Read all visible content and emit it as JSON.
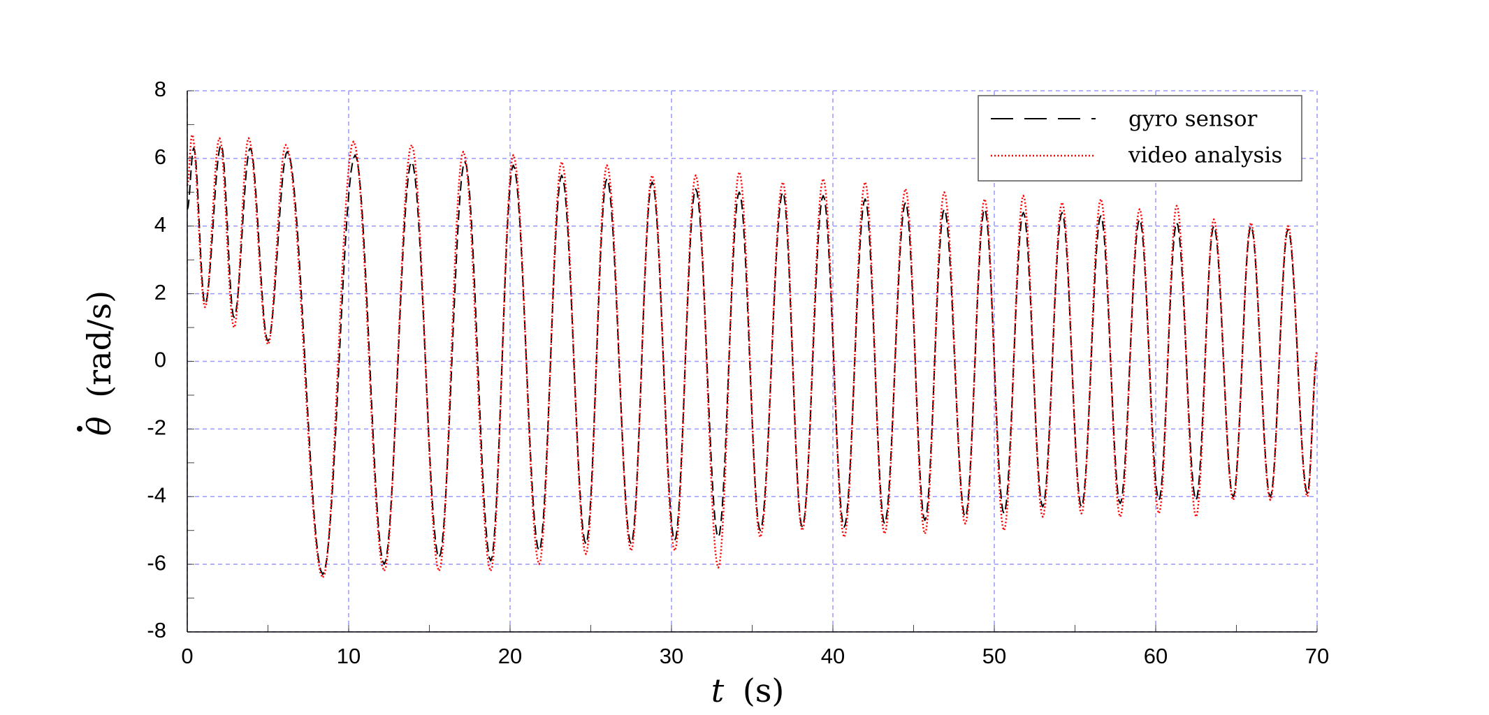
{
  "chart_data": {
    "type": "line",
    "title": "",
    "xlabel": {
      "var": "t",
      "unit": "(s)"
    },
    "ylabel": {
      "var": "θ",
      "unit": "(rad/s)"
    },
    "xlim": [
      0,
      70
    ],
    "ylim": [
      -8,
      8
    ],
    "xticks": [
      0,
      10,
      20,
      30,
      40,
      50,
      60,
      70
    ],
    "yticks": [
      -8,
      -6,
      -4,
      -2,
      0,
      2,
      4,
      6,
      8
    ],
    "xtick_labels": [
      "0",
      "10",
      "20",
      "30",
      "40",
      "50",
      "60",
      "70"
    ],
    "ytick_labels": [
      "-8",
      "-6",
      "-4",
      "-2",
      "0",
      "2",
      "4",
      "6",
      "8"
    ],
    "grid": true,
    "legend_position": "top-right",
    "colors": {
      "gyro": "#000000",
      "video": "#ff0000",
      "grid": "#9999ff",
      "legend_border": "#555555"
    },
    "series": [
      {
        "name": "gyro sensor",
        "style": "dashed",
        "peaks": [
          [
            0.4,
            6.3
          ],
          [
            2.1,
            6.4
          ],
          [
            3.9,
            6.3
          ],
          [
            6.2,
            6.2
          ],
          [
            10.4,
            6.1
          ],
          [
            13.9,
            5.9
          ],
          [
            17.2,
            5.9
          ],
          [
            20.2,
            5.8
          ],
          [
            23.2,
            5.5
          ],
          [
            26.0,
            5.4
          ],
          [
            28.8,
            5.3
          ],
          [
            31.5,
            5.1
          ],
          [
            34.2,
            5.0
          ],
          [
            36.9,
            5.0
          ],
          [
            39.4,
            4.9
          ],
          [
            42.0,
            4.8
          ],
          [
            44.5,
            4.7
          ],
          [
            46.9,
            4.5
          ],
          [
            49.4,
            4.5
          ],
          [
            51.8,
            4.4
          ],
          [
            54.2,
            4.4
          ],
          [
            56.6,
            4.3
          ],
          [
            59.0,
            4.2
          ],
          [
            61.3,
            4.1
          ],
          [
            63.6,
            4.0
          ],
          [
            65.9,
            4.0
          ],
          [
            68.2,
            3.9
          ]
        ],
        "troughs": [
          [
            1.1,
            1.7
          ],
          [
            2.9,
            1.3
          ],
          [
            5.0,
            0.6
          ],
          [
            8.4,
            -6.3
          ],
          [
            12.2,
            -6.0
          ],
          [
            15.6,
            -5.8
          ],
          [
            18.8,
            -5.9
          ],
          [
            21.8,
            -5.6
          ],
          [
            24.7,
            -5.4
          ],
          [
            27.5,
            -5.4
          ],
          [
            30.2,
            -5.3
          ],
          [
            32.9,
            -5.2
          ],
          [
            35.5,
            -5.0
          ],
          [
            38.1,
            -4.9
          ],
          [
            40.7,
            -4.9
          ],
          [
            43.2,
            -4.8
          ],
          [
            45.7,
            -4.7
          ],
          [
            48.2,
            -4.6
          ],
          [
            50.6,
            -4.5
          ],
          [
            53.0,
            -4.3
          ],
          [
            55.4,
            -4.3
          ],
          [
            57.8,
            -4.2
          ],
          [
            60.2,
            -4.1
          ],
          [
            62.5,
            -4.1
          ],
          [
            64.8,
            -4.0
          ],
          [
            67.1,
            -4.0
          ],
          [
            69.4,
            -3.9
          ]
        ],
        "start": [
          0.0,
          4.5
        ],
        "end": [
          70.0,
          0.1
        ]
      },
      {
        "name": "video analysis",
        "style": "dotted",
        "peaks": [
          [
            0.3,
            6.7
          ],
          [
            2.0,
            6.6
          ],
          [
            3.8,
            6.6
          ],
          [
            6.1,
            6.4
          ],
          [
            10.3,
            6.5
          ],
          [
            13.9,
            6.4
          ],
          [
            17.1,
            6.2
          ],
          [
            20.2,
            6.1
          ],
          [
            23.2,
            5.9
          ],
          [
            26.0,
            5.8
          ],
          [
            28.8,
            5.5
          ],
          [
            31.5,
            5.5
          ],
          [
            34.2,
            5.6
          ],
          [
            36.9,
            5.3
          ],
          [
            39.4,
            5.4
          ],
          [
            42.0,
            5.3
          ],
          [
            44.5,
            5.1
          ],
          [
            46.9,
            5.0
          ],
          [
            49.4,
            4.8
          ],
          [
            51.8,
            4.9
          ],
          [
            54.2,
            4.7
          ],
          [
            56.6,
            4.8
          ],
          [
            59.0,
            4.5
          ],
          [
            61.3,
            4.6
          ],
          [
            63.6,
            4.2
          ],
          [
            65.9,
            4.1
          ],
          [
            68.2,
            4.0
          ]
        ],
        "troughs": [
          [
            1.1,
            1.6
          ],
          [
            2.9,
            1.0
          ],
          [
            5.0,
            0.5
          ],
          [
            8.4,
            -6.4
          ],
          [
            12.2,
            -6.2
          ],
          [
            15.6,
            -6.2
          ],
          [
            18.8,
            -6.2
          ],
          [
            21.8,
            -6.0
          ],
          [
            24.7,
            -5.7
          ],
          [
            27.5,
            -5.6
          ],
          [
            30.2,
            -5.6
          ],
          [
            32.9,
            -6.1
          ],
          [
            35.5,
            -5.2
          ],
          [
            38.1,
            -5.0
          ],
          [
            40.7,
            -5.2
          ],
          [
            43.2,
            -5.1
          ],
          [
            45.7,
            -5.1
          ],
          [
            48.2,
            -4.8
          ],
          [
            50.6,
            -5.0
          ],
          [
            53.0,
            -4.6
          ],
          [
            55.4,
            -4.5
          ],
          [
            57.8,
            -4.6
          ],
          [
            60.2,
            -4.5
          ],
          [
            62.5,
            -4.6
          ],
          [
            64.8,
            -4.1
          ],
          [
            67.1,
            -4.1
          ],
          [
            69.4,
            -4.0
          ]
        ],
        "start": [
          0.0,
          5.2
        ],
        "end": [
          70.0,
          0.3
        ]
      }
    ]
  }
}
